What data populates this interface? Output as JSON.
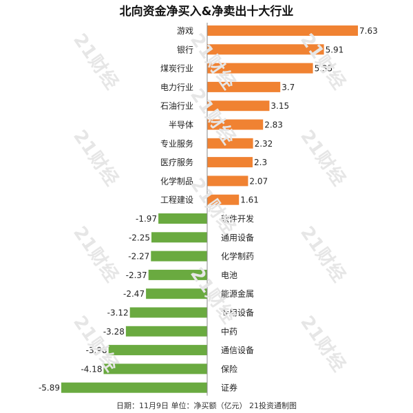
{
  "chart_data": {
    "type": "bar",
    "orientation": "horizontal",
    "title": "北向资金净买入&净卖出十大行业",
    "categories": [
      "游戏",
      "银行",
      "煤炭行业",
      "电力行业",
      "石油行业",
      "半导体",
      "专业服务",
      "医疗服务",
      "化学制品",
      "工程建设",
      "软件开发",
      "通用设备",
      "化学制药",
      "电池",
      "能源金属",
      "专用设备",
      "中药",
      "通信设备",
      "保险",
      "证券"
    ],
    "values": [
      7.63,
      5.91,
      5.35,
      3.7,
      3.15,
      2.83,
      2.32,
      2.3,
      2.07,
      1.61,
      -1.97,
      -2.25,
      -2.27,
      -2.37,
      -2.47,
      -3.12,
      -3.28,
      -3.98,
      -4.18,
      -5.89
    ],
    "value_labels": [
      "7.63",
      "5.91",
      "5.35",
      "3.7",
      "3.15",
      "2.83",
      "2.32",
      "2.3",
      "2.07",
      "1.61",
      "-1.97",
      "-2.25",
      "-2.27",
      "-2.37",
      "-2.47",
      "-3.12",
      "-3.28",
      "-3.98",
      "-4.18",
      "-5.89"
    ],
    "xlim": [
      -5.89,
      7.63
    ],
    "colors": {
      "positive": "#f08232",
      "negative": "#6aaa40",
      "axis": "#888888"
    },
    "grid": false,
    "legend": "none"
  },
  "footer": "日期：11月9日 单位：净买额（亿元） 21投资通制图",
  "watermark": "21财经"
}
